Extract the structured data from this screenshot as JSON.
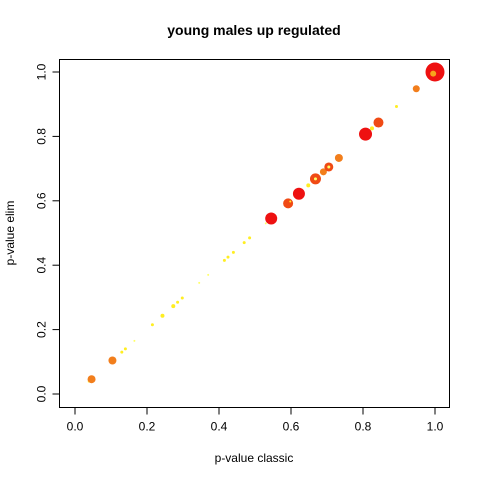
{
  "chart_data": {
    "type": "scatter",
    "title": "young males up regulated",
    "xlabel": "p-value classic",
    "ylabel": "p-value elim",
    "xlim": [
      0,
      1
    ],
    "ylim": [
      0,
      1
    ],
    "xticks": [
      "0.0",
      "0.2",
      "0.4",
      "0.6",
      "0.8",
      "1.0"
    ],
    "yticks": [
      "0.0",
      "0.2",
      "0.4",
      "0.6",
      "0.8",
      "1.0"
    ],
    "grid": false,
    "legend": "none",
    "colors": {
      "red": "#ee1111",
      "orange_red": "#f04a14",
      "orange": "#f27e1c",
      "light_orange": "#f7a31c",
      "yellow": "#ffee22",
      "pale_yellow": "#ffff66",
      "axis": "#000000"
    },
    "points": [
      {
        "x": 0.038,
        "y": 0.038,
        "size": 1,
        "color": "pale_yellow"
      },
      {
        "x": 0.046,
        "y": 0.046,
        "size": 4,
        "color": "orange"
      },
      {
        "x": 0.104,
        "y": 0.104,
        "size": 4,
        "color": "orange"
      },
      {
        "x": 0.13,
        "y": 0.13,
        "size": 1.5,
        "color": "yellow"
      },
      {
        "x": 0.14,
        "y": 0.14,
        "size": 1.5,
        "color": "yellow"
      },
      {
        "x": 0.165,
        "y": 0.165,
        "size": 1,
        "color": "pale_yellow"
      },
      {
        "x": 0.215,
        "y": 0.215,
        "size": 1.5,
        "color": "yellow"
      },
      {
        "x": 0.243,
        "y": 0.243,
        "size": 2,
        "color": "yellow"
      },
      {
        "x": 0.273,
        "y": 0.273,
        "size": 2,
        "color": "yellow"
      },
      {
        "x": 0.285,
        "y": 0.285,
        "size": 1.5,
        "color": "yellow"
      },
      {
        "x": 0.298,
        "y": 0.298,
        "size": 1.5,
        "color": "yellow"
      },
      {
        "x": 0.345,
        "y": 0.345,
        "size": 1,
        "color": "pale_yellow"
      },
      {
        "x": 0.37,
        "y": 0.37,
        "size": 1,
        "color": "pale_yellow"
      },
      {
        "x": 0.415,
        "y": 0.415,
        "size": 1.5,
        "color": "yellow"
      },
      {
        "x": 0.425,
        "y": 0.425,
        "size": 1.5,
        "color": "yellow"
      },
      {
        "x": 0.44,
        "y": 0.44,
        "size": 1.5,
        "color": "yellow"
      },
      {
        "x": 0.47,
        "y": 0.47,
        "size": 1.5,
        "color": "yellow"
      },
      {
        "x": 0.485,
        "y": 0.485,
        "size": 1.5,
        "color": "yellow"
      },
      {
        "x": 0.53,
        "y": 0.53,
        "size": 1,
        "color": "pale_yellow"
      },
      {
        "x": 0.545,
        "y": 0.545,
        "size": 6,
        "color": "red"
      },
      {
        "x": 0.592,
        "y": 0.592,
        "size": 5,
        "color": "orange_red"
      },
      {
        "x": 0.598,
        "y": 0.598,
        "size": 1,
        "color": "yellow"
      },
      {
        "x": 0.622,
        "y": 0.622,
        "size": 6,
        "color": "red"
      },
      {
        "x": 0.648,
        "y": 0.648,
        "size": 2,
        "color": "yellow"
      },
      {
        "x": 0.668,
        "y": 0.668,
        "size": 5.5,
        "color": "orange_red"
      },
      {
        "x": 0.668,
        "y": 0.668,
        "size": 1.5,
        "color": "pale_yellow"
      },
      {
        "x": 0.69,
        "y": 0.69,
        "size": 3.5,
        "color": "orange"
      },
      {
        "x": 0.705,
        "y": 0.705,
        "size": 4.5,
        "color": "orange_red"
      },
      {
        "x": 0.705,
        "y": 0.705,
        "size": 1.5,
        "color": "pale_yellow"
      },
      {
        "x": 0.733,
        "y": 0.733,
        "size": 4,
        "color": "orange"
      },
      {
        "x": 0.807,
        "y": 0.807,
        "size": 6.5,
        "color": "red"
      },
      {
        "x": 0.825,
        "y": 0.825,
        "size": 2,
        "color": "yellow"
      },
      {
        "x": 0.843,
        "y": 0.843,
        "size": 5,
        "color": "orange_red"
      },
      {
        "x": 0.893,
        "y": 0.893,
        "size": 1.5,
        "color": "yellow"
      },
      {
        "x": 0.948,
        "y": 0.948,
        "size": 3.5,
        "color": "orange"
      },
      {
        "x": 1.0,
        "y": 1.0,
        "size": 9.5,
        "color": "red"
      },
      {
        "x": 0.995,
        "y": 0.995,
        "size": 3,
        "color": "light_orange"
      }
    ]
  }
}
